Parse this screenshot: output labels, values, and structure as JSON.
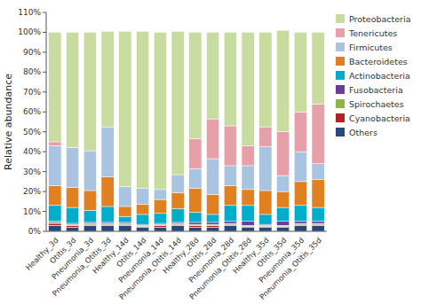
{
  "chart_data": {
    "type": "bar",
    "stacked": true,
    "legend": "right",
    "grid": false,
    "y_label": "Relative abundance",
    "categories": [
      "Healthy_3d",
      "Otitis_3d",
      "Pneumonia_3d",
      "Pneumonia_Otitis_3d",
      "Healthy_14d",
      "Otitis_14d",
      "Pneumonia_14d",
      "Pneumonia_Otitis_14d",
      "Healthy_28d",
      "Otitis_28d",
      "Pneumonia_28d",
      "Pneumonia_Otitis_28d",
      "Healthy_35d",
      "Otitis_35d",
      "Pneumonia_35d",
      "Pneumonia_Otitis_35d"
    ],
    "series": [
      {
        "name": "Others",
        "color": "#254a7a",
        "values": [
          3,
          2,
          3,
          3,
          3,
          2,
          2,
          3,
          2,
          2,
          3,
          2,
          2,
          2,
          3,
          3
        ]
      },
      {
        "name": "Cyanobacteria",
        "color": "#b22222",
        "values": [
          1,
          1,
          0.5,
          0.5,
          0.5,
          0.5,
          1,
          0.5,
          1,
          1,
          0.5,
          0.5,
          0.5,
          0.5,
          0.5,
          0.5
        ]
      },
      {
        "name": "Spirochaetes",
        "color": "#8db545",
        "values": [
          0.5,
          0.5,
          0.5,
          0.5,
          0.5,
          0.5,
          0.5,
          0.5,
          0.5,
          0.5,
          0.5,
          0.5,
          0.5,
          0.5,
          0.5,
          0.5
        ]
      },
      {
        "name": "Fusobacteria",
        "color": "#6a3d9a",
        "values": [
          0.5,
          0.5,
          0.5,
          0.5,
          0.5,
          0.5,
          0.5,
          0.5,
          1,
          1,
          1,
          2,
          0.5,
          2,
          1,
          1
        ]
      },
      {
        "name": "Actinobacteria",
        "color": "#00aecc",
        "values": [
          8,
          8,
          6,
          8,
          3,
          5,
          5,
          7,
          5,
          4,
          8,
          8,
          5,
          7,
          8,
          7
        ]
      },
      {
        "name": "Bacteroidetes",
        "color": "#e08020",
        "values": [
          10,
          10,
          10,
          15,
          5,
          5,
          7,
          8,
          12,
          10,
          10,
          8,
          12,
          8,
          12,
          14
        ]
      },
      {
        "name": "Firmicutes",
        "color": "#a8c4e0",
        "values": [
          20,
          20,
          20,
          25,
          10,
          8,
          5,
          9,
          10,
          18,
          10,
          12,
          22,
          8,
          15,
          8
        ]
      },
      {
        "name": "Tenericutes",
        "color": "#e8a0a8",
        "values": [
          2,
          0,
          0,
          0,
          0,
          0,
          0,
          0,
          15,
          20,
          20,
          10,
          10,
          22,
          20,
          30
        ]
      },
      {
        "name": "Proteobacteria",
        "color": "#c8dca0",
        "values": [
          55,
          58,
          59.5,
          48,
          78,
          79,
          79,
          72,
          53.5,
          43.5,
          47,
          57,
          47.5,
          51,
          40,
          36
        ]
      }
    ],
    "ylim": [
      0,
      110
    ],
    "yticks": [
      {
        "value": 0,
        "label": "0%"
      },
      {
        "value": 10,
        "label": "10%"
      },
      {
        "value": 20,
        "label": "20%"
      },
      {
        "value": 30,
        "label": "30%"
      },
      {
        "value": 40,
        "label": "40%"
      },
      {
        "value": 50,
        "label": "50%"
      },
      {
        "value": 60,
        "label": "60%"
      },
      {
        "value": 70,
        "label": "70%"
      },
      {
        "value": 80,
        "label": "80%"
      },
      {
        "value": 90,
        "label": "90%"
      },
      {
        "value": 100,
        "label": "100%"
      },
      {
        "value": 110,
        "label": "110%"
      }
    ]
  }
}
